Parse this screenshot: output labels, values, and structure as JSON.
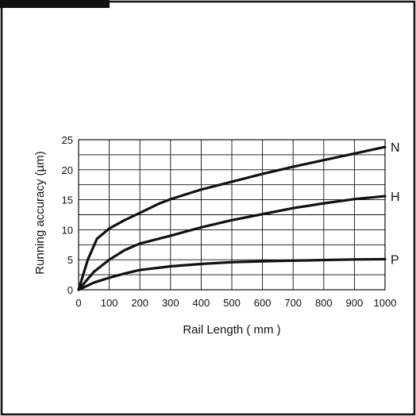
{
  "chart_data": {
    "type": "line",
    "xlabel": "Rail Length ( mm )",
    "ylabel": "Running accuracy (µm)",
    "xlim": [
      0,
      1000
    ],
    "ylim": [
      0,
      25
    ],
    "x_ticks": [
      0,
      100,
      200,
      300,
      400,
      500,
      600,
      700,
      800,
      900,
      1000
    ],
    "y_ticks": [
      0,
      5,
      10,
      15,
      20,
      25
    ],
    "grid": true,
    "series": [
      {
        "name": "N",
        "x": [
          0,
          30,
          60,
          100,
          150,
          200,
          260,
          300,
          400,
          500,
          600,
          700,
          800,
          900,
          1000
        ],
        "y": [
          0,
          5,
          8.5,
          10.2,
          11.6,
          12.8,
          14.3,
          15.1,
          16.7,
          18.0,
          19.3,
          20.5,
          21.6,
          22.7,
          23.8
        ]
      },
      {
        "name": "H",
        "x": [
          0,
          50,
          100,
          150,
          200,
          300,
          400,
          500,
          600,
          700,
          800,
          900,
          1000
        ],
        "y": [
          0,
          3,
          5,
          6.6,
          7.7,
          9.0,
          10.4,
          11.6,
          12.6,
          13.6,
          14.4,
          15.1,
          15.6
        ]
      },
      {
        "name": "P",
        "x": [
          0,
          50,
          100,
          150,
          200,
          300,
          400,
          500,
          600,
          700,
          800,
          900,
          1000
        ],
        "y": [
          0,
          1.2,
          2.0,
          2.7,
          3.3,
          3.9,
          4.3,
          4.6,
          4.75,
          4.85,
          4.95,
          5.05,
          5.1
        ]
      }
    ]
  }
}
